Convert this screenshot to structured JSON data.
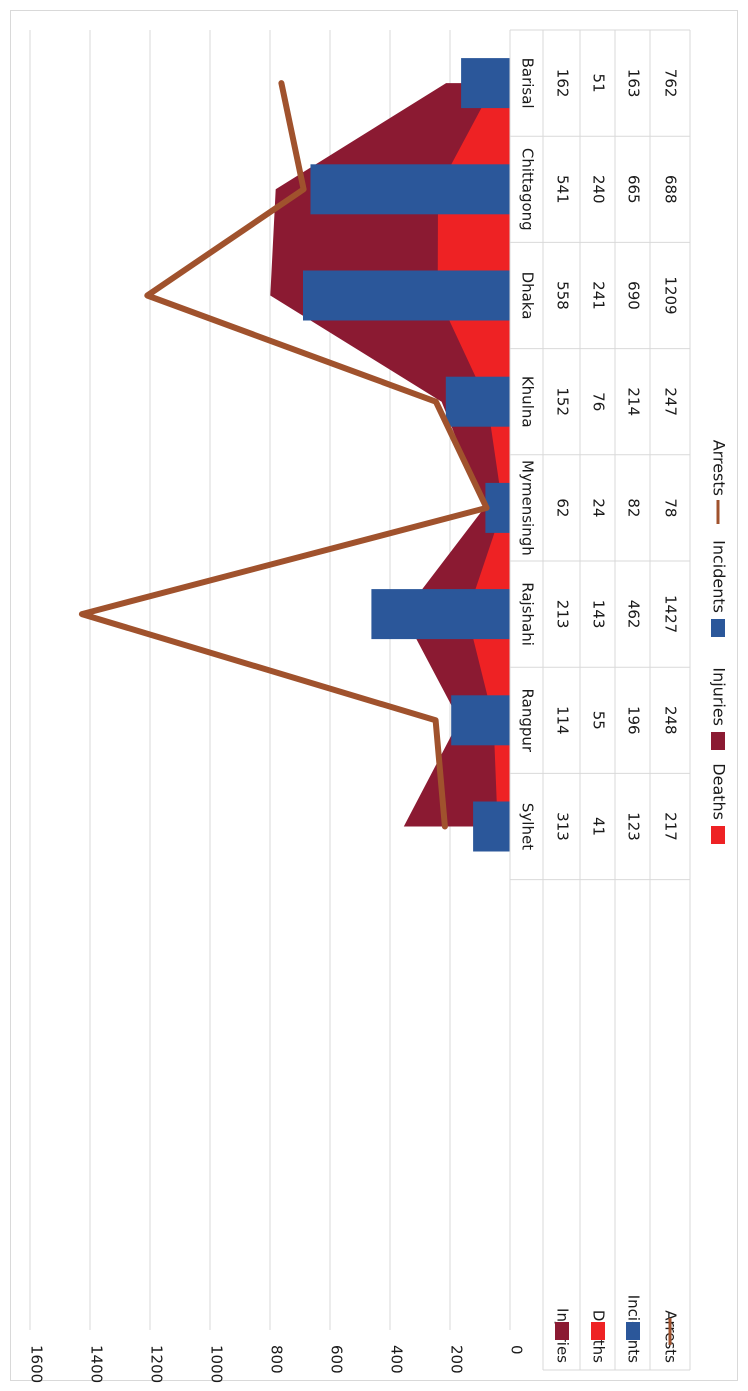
{
  "chart_data": {
    "type": "bar",
    "categories": [
      "Barisal",
      "Chittagong",
      "Dhaka",
      "Khulna",
      "Mymensingh",
      "Rajshahi",
      "Rangpur",
      "Sylhet"
    ],
    "series": [
      {
        "name": "Injuries",
        "kind": "area",
        "color": "#8B1A32",
        "values": [
          162,
          541,
          558,
          152,
          62,
          213,
          114,
          313
        ]
      },
      {
        "name": "Deaths",
        "kind": "area",
        "color": "#EE2224",
        "values": [
          51,
          240,
          241,
          76,
          24,
          143,
          55,
          41
        ]
      },
      {
        "name": "Incidents",
        "kind": "bar",
        "color": "#2B579A",
        "values": [
          163,
          665,
          690,
          214,
          82,
          462,
          196,
          123
        ]
      },
      {
        "name": "Arrests",
        "kind": "line",
        "color": "#A0522D",
        "values": [
          762,
          688,
          1209,
          247,
          78,
          1427,
          248,
          217
        ]
      }
    ],
    "stacked_areas": true,
    "ylim": [
      0,
      1600
    ],
    "yticks": [
      0,
      200,
      400,
      600,
      800,
      1000,
      1200,
      1400,
      1600
    ],
    "ytick_labels": [
      "0",
      "200",
      "400",
      "600",
      "800",
      "1000",
      "1200",
      "1400",
      "1600"
    ],
    "grid": true,
    "orientation": "rotated 90° clockwise",
    "data_table": true,
    "legend": [
      "Deaths",
      "Injuries",
      "Incidents",
      "Arrests"
    ],
    "legend_position": "bottom"
  }
}
